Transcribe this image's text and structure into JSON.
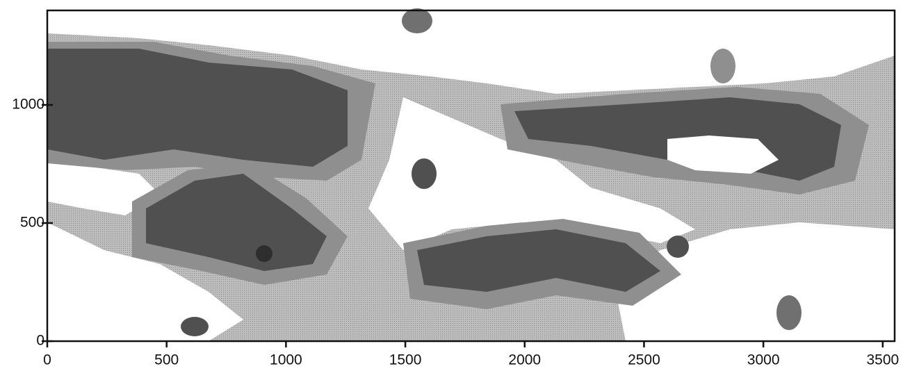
{
  "chart_data": {
    "type": "contour",
    "xlim": [
      0,
      3550
    ],
    "ylim": [
      0,
      1400
    ],
    "xticks": [
      0,
      500,
      1000,
      1500,
      2000,
      2500,
      3000,
      3500
    ],
    "yticks": [
      0,
      500,
      1000
    ]
  }
}
